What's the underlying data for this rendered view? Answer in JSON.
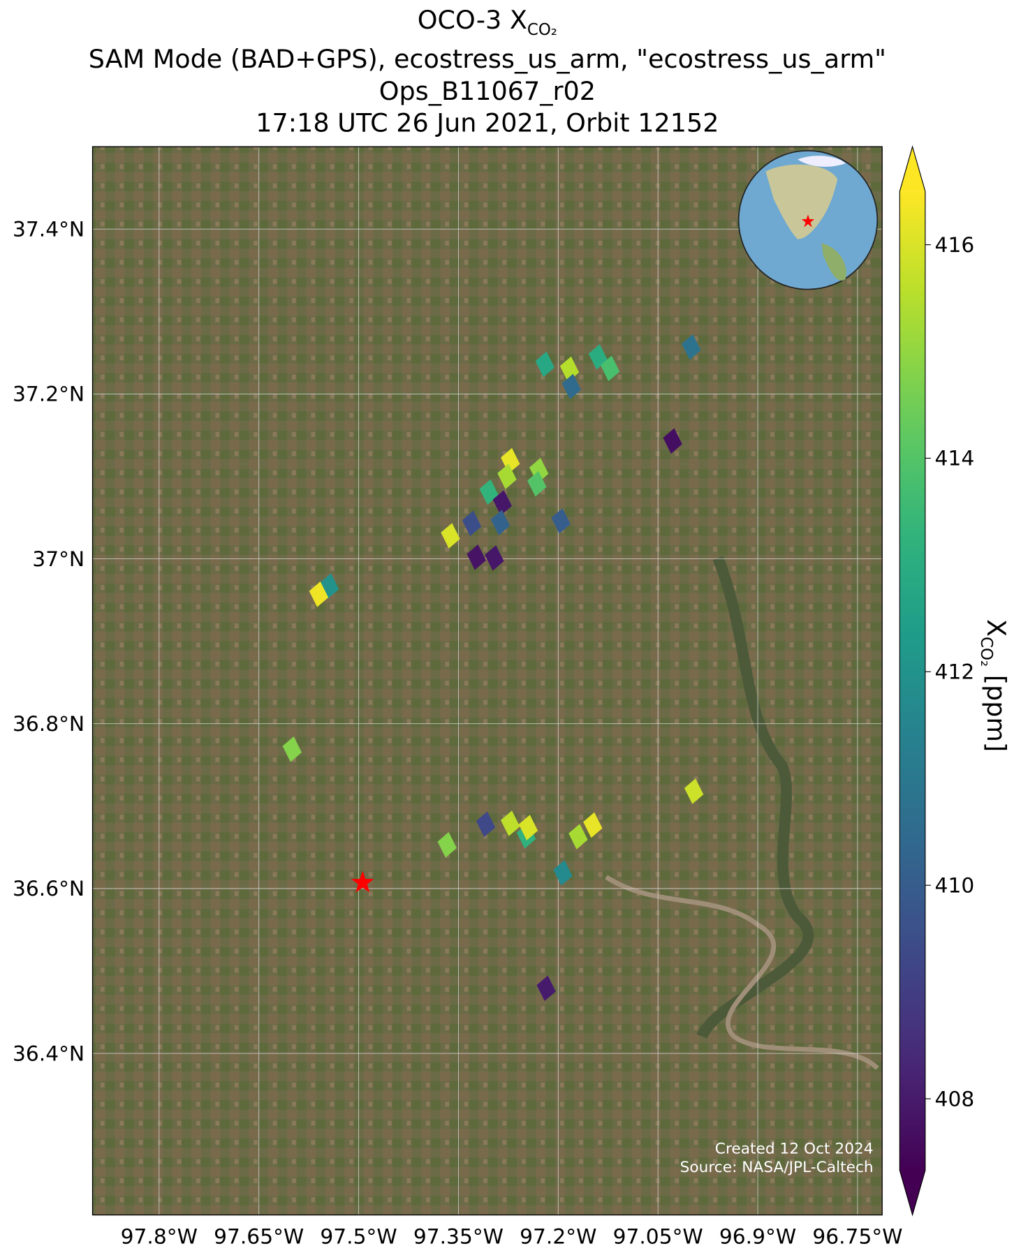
{
  "chart_data": {
    "type": "map-scatter",
    "title": {
      "prefix": "OCO-3 X",
      "subscript": "CO₂"
    },
    "subtitle_lines": [
      "SAM Mode (BAD+GPS), ecostress_us_arm, \"ecostress_us_arm\"",
      "Ops_B11067_r02",
      "17:18 UTC 26 Jun 2021, Orbit 12152"
    ],
    "xlim": [
      -97.9,
      -96.713
    ],
    "ylim": [
      36.204,
      37.5
    ],
    "xticks": [
      {
        "value": -97.8,
        "label": "97.8°W"
      },
      {
        "value": -97.65,
        "label": "97.65°W"
      },
      {
        "value": -97.5,
        "label": "97.5°W"
      },
      {
        "value": -97.35,
        "label": "97.35°W"
      },
      {
        "value": -97.2,
        "label": "97.2°W"
      },
      {
        "value": -97.05,
        "label": "97.05°W"
      },
      {
        "value": -96.9,
        "label": "96.9°W"
      },
      {
        "value": -96.75,
        "label": "96.75°W"
      }
    ],
    "yticks": [
      {
        "value": 37.4,
        "label": "37.4°N"
      },
      {
        "value": 37.2,
        "label": "37.2°N"
      },
      {
        "value": 37.0,
        "label": "37°N"
      },
      {
        "value": 36.8,
        "label": "36.8°N"
      },
      {
        "value": 36.6,
        "label": "36.6°N"
      },
      {
        "value": 36.4,
        "label": "36.4°N"
      }
    ],
    "grid": true,
    "colormap": "viridis",
    "clim": [
      407.33,
      416.5
    ],
    "cticks": [
      408,
      410,
      412,
      414,
      416
    ],
    "colorbar_label": {
      "prefix": "X",
      "subscript": "CO₂",
      "unit": "[ppm]"
    },
    "target": {
      "lon": -97.494,
      "lat": 36.607,
      "color": "#ff0000"
    },
    "points": [
      {
        "lon": -97.22,
        "lat": 37.236,
        "value": 412.8
      },
      {
        "lon": -97.183,
        "lat": 37.23,
        "value": 415.5
      },
      {
        "lon": -97.18,
        "lat": 37.209,
        "value": 410.5
      },
      {
        "lon": -97.14,
        "lat": 37.245,
        "value": 413
      },
      {
        "lon": -97.122,
        "lat": 37.231,
        "value": 413.8
      },
      {
        "lon": -97.0,
        "lat": 37.257,
        "value": 410.8
      },
      {
        "lon": -97.028,
        "lat": 37.143,
        "value": 407.7
      },
      {
        "lon": -97.272,
        "lat": 37.119,
        "value": 416.2
      },
      {
        "lon": -97.277,
        "lat": 37.1,
        "value": 415.3
      },
      {
        "lon": -97.229,
        "lat": 37.107,
        "value": 415
      },
      {
        "lon": -97.232,
        "lat": 37.091,
        "value": 414
      },
      {
        "lon": -97.304,
        "lat": 37.081,
        "value": 413.3
      },
      {
        "lon": -97.284,
        "lat": 37.068,
        "value": 407.9
      },
      {
        "lon": -97.287,
        "lat": 37.044,
        "value": 410.2
      },
      {
        "lon": -97.33,
        "lat": 37.043,
        "value": 409.5
      },
      {
        "lon": -97.362,
        "lat": 37.028,
        "value": 416
      },
      {
        "lon": -97.196,
        "lat": 37.046,
        "value": 410
      },
      {
        "lon": -97.323,
        "lat": 37.002,
        "value": 407.8
      },
      {
        "lon": -97.296,
        "lat": 37.001,
        "value": 407.9
      },
      {
        "lon": -97.544,
        "lat": 36.967,
        "value": 412
      },
      {
        "lon": -97.56,
        "lat": 36.957,
        "value": 416.3
      },
      {
        "lon": -97.6,
        "lat": 36.769,
        "value": 414.8
      },
      {
        "lon": -96.996,
        "lat": 36.718,
        "value": 415.8
      },
      {
        "lon": -97.309,
        "lat": 36.678,
        "value": 409.3
      },
      {
        "lon": -97.272,
        "lat": 36.679,
        "value": 415.6
      },
      {
        "lon": -97.248,
        "lat": 36.664,
        "value": 413.2
      },
      {
        "lon": -97.245,
        "lat": 36.674,
        "value": 416
      },
      {
        "lon": -97.367,
        "lat": 36.653,
        "value": 414.8
      },
      {
        "lon": -97.17,
        "lat": 36.663,
        "value": 415.3
      },
      {
        "lon": -97.148,
        "lat": 36.677,
        "value": 416.2
      },
      {
        "lon": -97.193,
        "lat": 36.619,
        "value": 411.7
      },
      {
        "lon": -97.218,
        "lat": 36.479,
        "value": 408
      }
    ],
    "credits": [
      "Created 12 Oct 2024",
      "Source: NASA/JPL-Caltech"
    ]
  }
}
